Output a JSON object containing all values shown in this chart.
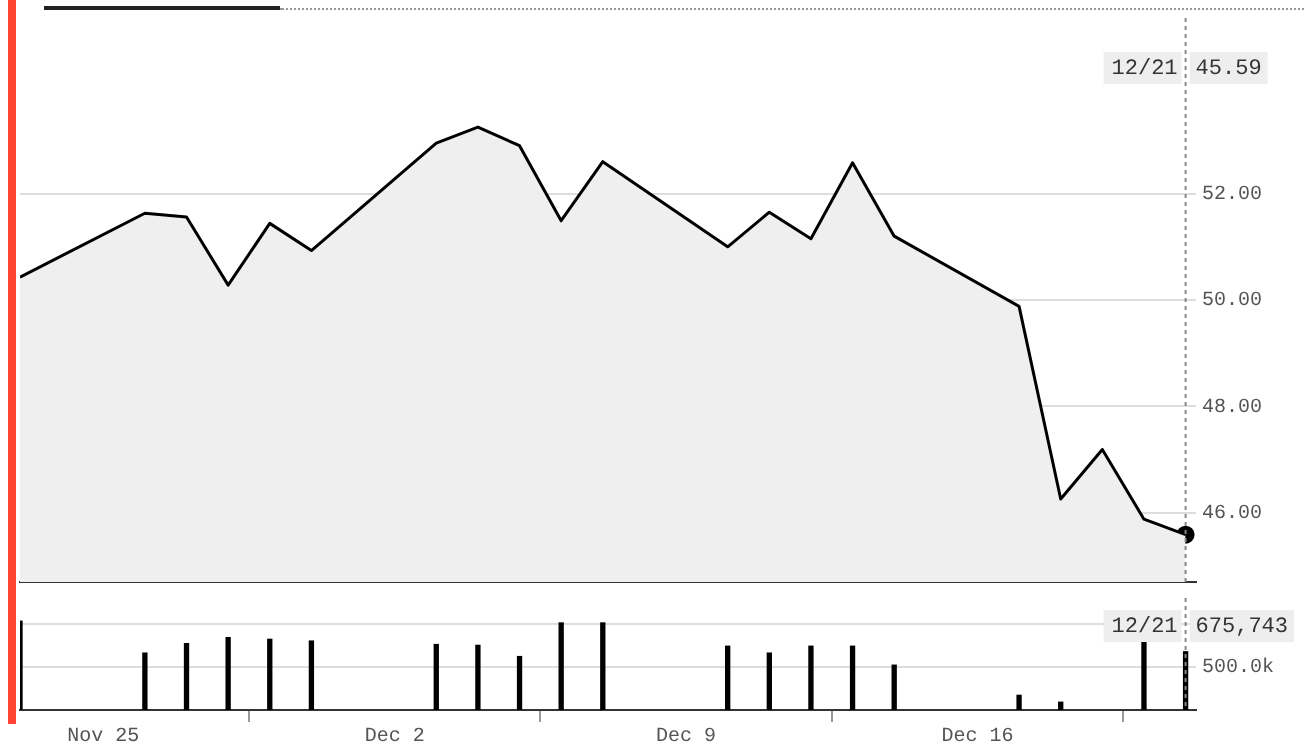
{
  "chart_data": [
    {
      "type": "area",
      "x": [
        "--11-23",
        "--11-26",
        "--11-27",
        "--11-28",
        "--11-29",
        "--11-30",
        "--12-03",
        "--12-04",
        "--12-05",
        "--12-06",
        "--12-07",
        "--12-10",
        "--12-11",
        "--12-12",
        "--12-13",
        "--12-14",
        "--12-17",
        "--12-18",
        "--12-19",
        "--12-20",
        "--12-21"
      ],
      "series": [
        {
          "color": "#000000",
          "values": [
            50.43,
            51.63,
            51.56,
            50.28,
            51.44,
            50.93,
            52.95,
            53.25,
            52.9,
            51.49,
            52.6,
            51.0,
            51.65,
            51.15,
            52.58,
            51.2,
            49.88,
            46.26,
            47.19,
            45.88,
            45.59
          ]
        },
        {
          "type": "scatter",
          "marker": "circle",
          "color": "#000000",
          "x": [
            "--12-21"
          ],
          "values": [
            45.59
          ]
        }
      ],
      "annotations": [
        "45.59"
      ],
      "xlim": [
        "--11-23",
        "--12-21T06:00"
      ],
      "ylim": [
        44.7,
        55.3
      ],
      "yticks": [
        {
          "value": 46,
          "label": "46.00"
        },
        {
          "value": 48,
          "label": "48.00"
        },
        {
          "value": 50,
          "label": "50.00"
        },
        {
          "value": 52,
          "label": "52.00"
        }
      ],
      "grid": "y",
      "tick_labels": "y",
      "ref_lines": [
        {
          "axis": "x",
          "value": "--12-21",
          "label": "12/21",
          "color": "#888888",
          "line_style": "dotted"
        }
      ]
    },
    {
      "type": "bar",
      "x": [
        "--11-23",
        "--11-26",
        "--11-27",
        "--11-28",
        "--11-29",
        "--11-30",
        "--12-03",
        "--12-04",
        "--12-05",
        "--12-06",
        "--12-07",
        "--12-10",
        "--12-11",
        "--12-12",
        "--12-13",
        "--12-14",
        "--12-17",
        "--12-18",
        "--12-19",
        "--12-20",
        "--12-21"
      ],
      "series": [
        {
          "color": "#000000",
          "values": [
            1030000,
            660000,
            770000,
            840000,
            820000,
            800000,
            760000,
            750000,
            620000,
            1010000,
            1010000,
            740000,
            660000,
            740000,
            740000,
            520000,
            170000,
            90000,
            null,
            810000,
            675743
          ]
        }
      ],
      "annotations": [
        "675,743"
      ],
      "xlim": [
        "--11-23",
        "--12-21T06:00"
      ],
      "ylim": [
        0,
        1300000
      ],
      "xticks": [
        {
          "value": "--11-25",
          "label": "Nov 25"
        },
        {
          "value": "--12-02",
          "label": "Dec 2"
        },
        {
          "value": "--12-09",
          "label": "Dec 9"
        },
        {
          "value": "--12-16",
          "label": "Dec 16"
        }
      ],
      "yticks": [
        {
          "value": 500000,
          "label": "500.0k"
        },
        {
          "value": 1000000,
          "label": null
        }
      ],
      "grid": "y",
      "ref_lines": [
        {
          "axis": "x",
          "value": "--12-21",
          "label": "12/21",
          "color": "#888888",
          "line_style": "dotted"
        }
      ]
    }
  ]
}
